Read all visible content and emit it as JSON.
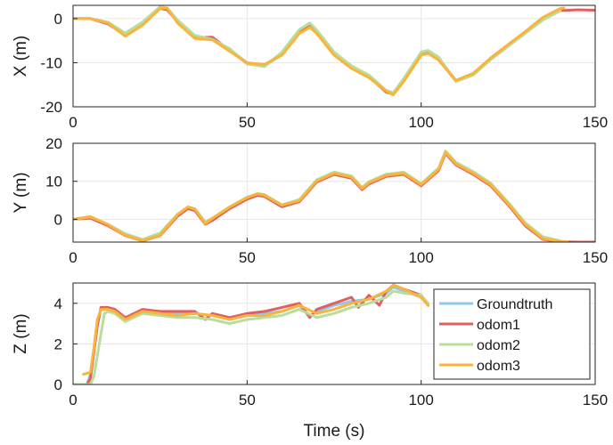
{
  "chart_data": [
    {
      "type": "line",
      "ylabel": "X (m)",
      "xlabel": "",
      "xlim": [
        0,
        150
      ],
      "ylim": [
        -20,
        3
      ],
      "xticks": [
        0,
        50,
        100,
        150
      ],
      "yticks": [
        -20,
        -10,
        0
      ],
      "grid": true,
      "series": [
        {
          "name": "Groundtruth",
          "color": "#8ec8ef",
          "x": [
            0,
            5,
            10,
            15,
            20,
            25,
            27,
            30,
            35,
            40,
            45,
            50,
            55,
            60,
            65,
            68,
            70,
            75,
            80,
            85,
            90,
            92,
            95,
            100,
            102,
            105,
            110,
            115,
            120,
            125,
            130,
            135,
            140
          ],
          "y": [
            0,
            0,
            -1,
            -3.5,
            -1,
            2.5,
            2.2,
            -0.5,
            -4,
            -4.5,
            -7,
            -10,
            -10.5,
            -8,
            -3,
            -1.5,
            -3,
            -8,
            -11,
            -13,
            -16.5,
            -17,
            -14,
            -8,
            -7.5,
            -9,
            -14,
            -12.5,
            -9,
            -6,
            -3,
            0,
            2
          ]
        },
        {
          "name": "odom1",
          "color": "#e06060",
          "x": [
            0,
            5,
            10,
            15,
            20,
            25,
            27,
            30,
            35,
            40,
            45,
            50,
            55,
            60,
            65,
            68,
            70,
            75,
            80,
            85,
            90,
            92,
            95,
            100,
            102,
            105,
            110,
            115,
            120,
            125,
            130,
            135,
            140,
            145,
            150
          ],
          "y": [
            0,
            0,
            -1.2,
            -3.7,
            -1.2,
            2.3,
            2,
            -0.7,
            -4.3,
            -4.2,
            -7.2,
            -10.2,
            -10.6,
            -8.2,
            -3.2,
            -1.8,
            -3.2,
            -8.2,
            -11.2,
            -13.2,
            -16.7,
            -17.2,
            -14.2,
            -8.2,
            -7.8,
            -9.2,
            -14.2,
            -12.7,
            -9.2,
            -6.2,
            -3.2,
            -0.2,
            1.8,
            2,
            1.9
          ]
        },
        {
          "name": "odom2",
          "color": "#b7de9d",
          "x": [
            0,
            5,
            10,
            15,
            20,
            25,
            27,
            30,
            35,
            40,
            45,
            50,
            55,
            60,
            65,
            68,
            70,
            75,
            80,
            85,
            90,
            92,
            95,
            100,
            102,
            105,
            110,
            115,
            120,
            125,
            130,
            135,
            140
          ],
          "y": [
            0,
            0,
            -0.8,
            -3.3,
            -0.8,
            2.7,
            2.4,
            -0.3,
            -3.8,
            -4.7,
            -6.8,
            -10.3,
            -10.9,
            -7.6,
            -2.5,
            -1,
            -2.6,
            -7.6,
            -10.7,
            -12.8,
            -16.3,
            -16.8,
            -13.6,
            -7.6,
            -7.2,
            -8.7,
            -14.3,
            -12.8,
            -9.3,
            -6.3,
            -3.3,
            -0.3,
            1.8
          ]
        },
        {
          "name": "odom3",
          "color": "#f9b43c",
          "x": [
            0,
            5,
            10,
            15,
            20,
            25,
            27,
            30,
            35,
            40,
            45,
            50,
            55,
            60,
            65,
            68,
            70,
            75,
            80,
            85,
            90,
            92,
            95,
            100,
            102,
            105,
            110,
            115,
            120,
            125,
            130,
            135,
            140,
            141
          ],
          "y": [
            0,
            0,
            -1,
            -4,
            -1.5,
            2.3,
            2.4,
            -1,
            -4.5,
            -4.8,
            -7.4,
            -10.1,
            -10.4,
            -8.3,
            -3.4,
            -2,
            -3.4,
            -8.3,
            -11.3,
            -13.4,
            -16.4,
            -17.3,
            -14.3,
            -8.3,
            -7.9,
            -9.4,
            -14,
            -12.4,
            -8.9,
            -5.9,
            -2.9,
            0.3,
            2.3,
            2.4
          ]
        }
      ]
    },
    {
      "type": "line",
      "ylabel": "Y (m)",
      "xlabel": "",
      "xlim": [
        0,
        150
      ],
      "ylim": [
        -6,
        20
      ],
      "xticks": [
        0,
        50,
        100,
        150
      ],
      "yticks": [
        0,
        10,
        20
      ],
      "grid": true,
      "series": [
        {
          "name": "Groundtruth",
          "color": "#8ec8ef",
          "x": [
            0,
            5,
            10,
            15,
            20,
            25,
            30,
            33,
            35,
            38,
            40,
            45,
            50,
            53,
            55,
            60,
            65,
            70,
            75,
            80,
            83,
            85,
            90,
            95,
            100,
            105,
            107,
            110,
            115,
            120,
            125,
            130,
            135,
            140
          ],
          "y": [
            0,
            0.5,
            -1.5,
            -4,
            -5.5,
            -4,
            1,
            3,
            2.5,
            -1,
            0,
            3,
            5.5,
            6.5,
            6.2,
            3.5,
            4.8,
            10,
            12,
            11,
            8,
            9.5,
            11.5,
            12,
            9,
            13,
            17.5,
            14.5,
            12,
            9,
            4,
            -1.5,
            -5,
            -5.8
          ]
        },
        {
          "name": "odom1",
          "color": "#e06060",
          "x": [
            0,
            5,
            10,
            15,
            20,
            25,
            30,
            33,
            35,
            38,
            40,
            45,
            50,
            53,
            55,
            60,
            65,
            70,
            75,
            80,
            83,
            85,
            90,
            95,
            100,
            105,
            107,
            110,
            115,
            120,
            125,
            130,
            135,
            140,
            145,
            150
          ],
          "y": [
            0,
            0.3,
            -1.7,
            -4.3,
            -5.7,
            -4.3,
            0.8,
            2.8,
            2.3,
            -1.3,
            -0.3,
            2.8,
            5.3,
            6.3,
            6,
            3.3,
            4.6,
            9.8,
            11.8,
            10.8,
            7.8,
            9.3,
            11.3,
            11.8,
            8.8,
            12.8,
            17.3,
            14.3,
            11.8,
            8.8,
            3.8,
            -1.8,
            -5.3,
            -5.9,
            -6,
            -6
          ]
        },
        {
          "name": "odom2",
          "color": "#b7de9d",
          "x": [
            0,
            5,
            10,
            15,
            20,
            25,
            30,
            33,
            35,
            38,
            40,
            45,
            50,
            53,
            55,
            60,
            65,
            70,
            75,
            80,
            83,
            85,
            90,
            95,
            100,
            105,
            107,
            110,
            115,
            120,
            125,
            130,
            135,
            140
          ],
          "y": [
            0,
            0.6,
            -1.3,
            -3.8,
            -5.3,
            -3.6,
            1.3,
            3.3,
            2.8,
            -0.7,
            0.3,
            3.3,
            5.8,
            6.8,
            6.5,
            3.8,
            5.2,
            10.4,
            12.4,
            11.4,
            8.4,
            9.9,
            11.9,
            12.4,
            9.4,
            13.5,
            18,
            15,
            12.5,
            9.5,
            4.5,
            -1,
            -4.6,
            -5.7
          ]
        },
        {
          "name": "odom3",
          "color": "#f9b43c",
          "x": [
            0,
            5,
            10,
            15,
            20,
            25,
            30,
            33,
            35,
            38,
            40,
            45,
            50,
            53,
            55,
            60,
            65,
            70,
            75,
            80,
            83,
            85,
            90,
            95,
            100,
            105,
            107,
            110,
            115,
            120,
            125,
            130,
            135,
            140,
            142
          ],
          "y": [
            0,
            0.7,
            -1.4,
            -4.2,
            -5.6,
            -4.2,
            1.2,
            3.2,
            2.7,
            -1.1,
            0.2,
            3.2,
            5.7,
            6.7,
            6.3,
            3.7,
            4.9,
            10.1,
            12.1,
            11.1,
            8.1,
            9.6,
            11.6,
            12.1,
            9.1,
            13.1,
            17.6,
            14.6,
            12.1,
            9.1,
            4.1,
            -1.4,
            -5.1,
            -5.8,
            -5.9
          ]
        }
      ]
    },
    {
      "type": "line",
      "ylabel": "Z (m)",
      "xlabel": "Time (s)",
      "xlim": [
        0,
        150
      ],
      "ylim": [
        0,
        5
      ],
      "xticks": [
        0,
        50,
        100,
        150
      ],
      "yticks": [
        0,
        2,
        4
      ],
      "grid": true,
      "legend": {
        "position": "top-right",
        "entries": [
          "Groundtruth",
          "odom1",
          "odom2",
          "odom3"
        ]
      },
      "series": [
        {
          "name": "Groundtruth",
          "color": "#8ec8ef",
          "x": [
            0,
            4,
            5,
            7,
            8,
            10,
            12,
            15,
            20,
            25,
            30,
            35,
            40,
            45,
            50,
            55,
            60,
            65,
            68,
            70,
            75,
            80,
            85,
            90,
            92,
            95,
            100,
            102
          ],
          "y": [
            0,
            0,
            0.5,
            3,
            3.7,
            3.7,
            3.6,
            3.3,
            3.6,
            3.5,
            3.5,
            3.5,
            3.4,
            3.2,
            3.4,
            3.5,
            3.6,
            3.9,
            3.4,
            3.6,
            3.9,
            4.1,
            4.2,
            4.5,
            4.8,
            4.6,
            4.3,
            3.9
          ]
        },
        {
          "name": "odom1",
          "color": "#e06060",
          "x": [
            0,
            4,
            5,
            7,
            8,
            10,
            12,
            15,
            20,
            25,
            30,
            35,
            38,
            40,
            45,
            50,
            55,
            60,
            65,
            68,
            70,
            75,
            80,
            82,
            85,
            88,
            90,
            92,
            95,
            100,
            102
          ],
          "y": [
            0,
            0,
            0.3,
            2.9,
            3.8,
            3.8,
            3.7,
            3.3,
            3.7,
            3.6,
            3.6,
            3.6,
            3.2,
            3.5,
            3.3,
            3.5,
            3.6,
            3.8,
            4,
            3.3,
            3.7,
            4,
            4.3,
            3.8,
            4.4,
            3.9,
            4.6,
            4.9,
            4.7,
            4.4,
            3.9
          ]
        },
        {
          "name": "odom2",
          "color": "#b7de9d",
          "x": [
            0,
            5,
            6,
            8,
            9,
            10,
            12,
            15,
            20,
            25,
            30,
            35,
            40,
            45,
            50,
            55,
            60,
            65,
            70,
            75,
            80,
            85,
            90,
            92,
            95,
            100,
            102
          ],
          "y": [
            0,
            0,
            0.4,
            2.5,
            3.5,
            3.6,
            3.5,
            3.1,
            3.5,
            3.4,
            3.3,
            3.3,
            3.2,
            3,
            3.2,
            3.3,
            3.4,
            3.7,
            3.3,
            3.5,
            3.8,
            4,
            4.3,
            4.6,
            4.5,
            4.4,
            4
          ]
        },
        {
          "name": "odom3",
          "color": "#f9b43c",
          "x": [
            3,
            5,
            6,
            7,
            8,
            10,
            12,
            15,
            20,
            25,
            30,
            35,
            40,
            45,
            50,
            55,
            60,
            65,
            70,
            75,
            80,
            85,
            90,
            92,
            95,
            100,
            102
          ],
          "y": [
            0.5,
            0.6,
            1.8,
            3.2,
            3.7,
            3.7,
            3.6,
            3.2,
            3.6,
            3.5,
            3.4,
            3.5,
            3.4,
            3.2,
            3.4,
            3.4,
            3.6,
            3.9,
            3.5,
            3.7,
            4,
            4.2,
            4.6,
            4.9,
            4.7,
            4.3,
            3.9
          ]
        }
      ]
    }
  ]
}
